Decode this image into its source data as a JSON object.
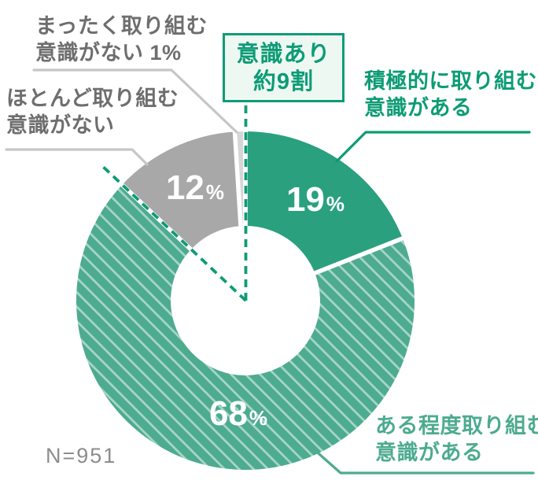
{
  "colors": {
    "accent_green": "#0d9c75",
    "solid_green": "#2aa07f",
    "hatch_green": "#4dab8f",
    "hatch_stripe": "rgba(255,255,255,0.5)",
    "gray_segment": "#a8a8a8",
    "light_gray_segment": "#d6d6d6",
    "gray_text": "#6e6e6e",
    "gray_line": "#c6c6c6",
    "box_fill": "#eef8f3",
    "sample_gray": "#8d8d8d",
    "value_text": "#ffffff"
  },
  "labels": {
    "none_at_all": {
      "line1": "まったく取り組む",
      "line2": "意識がない 1%"
    },
    "hardly": {
      "line1": "ほとんど取り組む",
      "line2": "意識がない"
    },
    "active": {
      "line1": "積極的に取り組む",
      "line2": "意識がある"
    },
    "somewhat": {
      "line1": "ある程度取り組む",
      "line2": "意識がある"
    },
    "sample_size": "N=951"
  },
  "annotation_box": {
    "line1": "意識あり",
    "line2": "約9割"
  },
  "chart_data": {
    "type": "pie",
    "subtype": "donut",
    "unit": "%",
    "title": "",
    "legend_position": "callouts",
    "start_angle_deg": 0,
    "direction": "clockwise",
    "annotation": "意識あり 約9割",
    "sample_size": "N=951",
    "segments": [
      {
        "name": "active-awareness",
        "label": "積極的に取り組む意識がある",
        "value": 19,
        "style": "solid-green",
        "show_value": true
      },
      {
        "name": "somewhat-awareness",
        "label": "ある程度取り組む意識がある",
        "value": 68,
        "style": "hatched-green",
        "show_value": true
      },
      {
        "name": "hardly-no-awareness",
        "label": "ほとんど取り組む意識がない",
        "value": 12,
        "style": "gray",
        "show_value": true
      },
      {
        "name": "none-no-awareness",
        "label": "まったく取り組む意識がない",
        "value": 1,
        "style": "light-gray",
        "show_value": false
      }
    ]
  }
}
